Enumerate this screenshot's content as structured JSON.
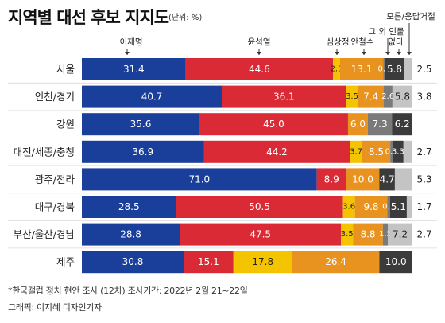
{
  "title": "지역별 대선 후보 지지도",
  "unit": "(단위: %)",
  "footnote": "*한국갤럽 정치 현안 조사 (12차) 조사기간: 2022년 2월 21~22일",
  "credit": "그래픽: 이지혜 디자인기자",
  "chart_data": {
    "type": "bar",
    "stacked": true,
    "orientation": "horizontal",
    "categories": [
      "서울",
      "인천/경기",
      "강원",
      "대전/세종/충청",
      "광주/전라",
      "대구/경북",
      "부산/울산/경남",
      "제주"
    ],
    "series": [
      {
        "name": "이재명",
        "color": "#1a3f9b",
        "values": [
          31.4,
          40.7,
          35.6,
          36.9,
          71.0,
          28.5,
          28.8,
          30.8
        ],
        "labels": [
          "31.4",
          "40.7",
          "35.6",
          "36.9",
          "71.0",
          "28.5",
          "28.8",
          "30.8"
        ]
      },
      {
        "name": "윤석열",
        "color": "#d92a35",
        "values": [
          44.6,
          36.1,
          45.0,
          44.2,
          8.9,
          50.5,
          47.5,
          15.1
        ],
        "labels": [
          "44.6",
          "36.1",
          "45.0",
          "44.2",
          "8.9",
          "50.5",
          "47.5",
          "15.1"
        ]
      },
      {
        "name": "심상정",
        "color": "#f5c400",
        "values": [
          2.1,
          3.5,
          0,
          3.7,
          0,
          3.6,
          3.5,
          17.8
        ],
        "labels": [
          "2.1",
          "3.5",
          "",
          "3.7",
          "",
          "3.6",
          "3.5",
          "17.8"
        ]
      },
      {
        "name": "안철수",
        "color": "#e8921f",
        "values": [
          13.1,
          7.4,
          6.0,
          8.5,
          10.0,
          9.8,
          8.8,
          26.4
        ],
        "labels": [
          "13.1",
          "7.4",
          "6.0",
          "8.5",
          "10.0",
          "9.8",
          "8.8",
          "26.4"
        ]
      },
      {
        "name": "그 외 인물",
        "color": "#7a7a7a",
        "values": [
          0.5,
          2.6,
          7.3,
          0.7,
          0,
          0.8,
          1.5,
          0
        ],
        "labels": [
          "0.5",
          "2.6",
          "7.3",
          "0.7",
          "",
          "0.8",
          "1.5",
          ""
        ]
      },
      {
        "name": "없다",
        "color": "#3b3b3b",
        "values": [
          5.8,
          0,
          6.2,
          3.3,
          4.7,
          5.1,
          0,
          10.0
        ],
        "labels": [
          "5.8",
          "",
          "6.2",
          "3.3",
          "4.7",
          "5.1",
          "",
          "10.0"
        ]
      },
      {
        "name": "모름/응답거절",
        "color": "#c4c4c4",
        "values": [
          2.5,
          5.8,
          0,
          2.7,
          5.3,
          1.7,
          7.2,
          0
        ],
        "labels": [
          "",
          "5.8",
          "",
          "",
          "",
          "",
          "7.2",
          ""
        ],
        "outside_labels": [
          "2.5",
          "3.8",
          "",
          "2.7",
          "5.3",
          "1.7",
          "2.7",
          ""
        ]
      }
    ],
    "xlim": [
      0,
      100
    ]
  }
}
